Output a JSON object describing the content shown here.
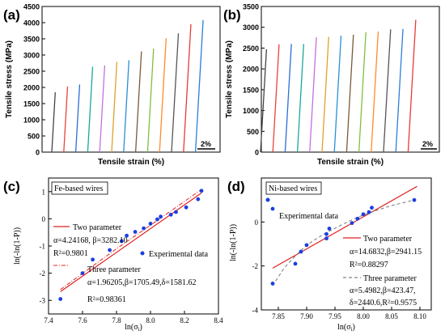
{
  "chart_data": [
    {
      "panel_label": "(a)",
      "type": "line",
      "xlabel": "Tensile strain (%)",
      "ylabel": "Tensile stress (MPa)",
      "ylim": [
        0,
        4500
      ],
      "yticks": [
        "0",
        "500",
        "1000",
        "1500",
        "2000",
        "2500",
        "3000",
        "3500",
        "4000",
        "4500"
      ],
      "scale_bar_label": "2%",
      "series": [
        {
          "peak": 1850,
          "color": "#444444"
        },
        {
          "peak": 2030,
          "color": "#e8443a"
        },
        {
          "peak": 2090,
          "color": "#2a6fd6"
        },
        {
          "peak": 2640,
          "color": "#1aa89a"
        },
        {
          "peak": 2680,
          "color": "#c86de0"
        },
        {
          "peak": 2790,
          "color": "#e0a12a"
        },
        {
          "peak": 2840,
          "color": "#2a8fd6"
        },
        {
          "peak": 3110,
          "color": "#7a5a3a"
        },
        {
          "peak": 3200,
          "color": "#7fbf3f"
        },
        {
          "peak": 3520,
          "color": "#ff8a2a"
        },
        {
          "peak": 3670,
          "color": "#555555"
        },
        {
          "peak": 3950,
          "color": "#e83a3a"
        },
        {
          "peak": 4080,
          "color": "#2a7fd6"
        }
      ]
    },
    {
      "panel_label": "(b)",
      "type": "line",
      "xlabel": "Tensile strain (%)",
      "ylabel": "Tensile stress (MPa)",
      "ylim": [
        0,
        3500
      ],
      "yticks": [
        "0",
        "500",
        "1000",
        "1500",
        "2000",
        "2500",
        "3000",
        "3500"
      ],
      "scale_bar_label": "2%",
      "series": [
        {
          "peak": 2470,
          "color": "#444444"
        },
        {
          "peak": 2590,
          "color": "#e8443a"
        },
        {
          "peak": 2600,
          "color": "#2a6fd6"
        },
        {
          "peak": 2600,
          "color": "#1aa89a"
        },
        {
          "peak": 2760,
          "color": "#c86de0"
        },
        {
          "peak": 2770,
          "color": "#e0a12a"
        },
        {
          "peak": 2800,
          "color": "#2a8fd6"
        },
        {
          "peak": 2820,
          "color": "#7a5a3a"
        },
        {
          "peak": 2880,
          "color": "#7fbf3f"
        },
        {
          "peak": 2900,
          "color": "#ff8a2a"
        },
        {
          "peak": 2950,
          "color": "#555555"
        },
        {
          "peak": 2960,
          "color": "#2a7fd6"
        },
        {
          "peak": 3180,
          "color": "#e83a3a"
        }
      ]
    },
    {
      "panel_label": "(c)",
      "type": "scatter",
      "xlabel": "ln(σ",
      "xlabel_sub": "i",
      "xlabel_tail": ")",
      "ylabel": "ln(-ln(1-P))",
      "xlim": [
        7.4,
        8.4
      ],
      "ylim": [
        -3.5,
        1.5
      ],
      "xticks": [
        "7.4",
        "7.6",
        "7.8",
        "8.0",
        "8.2",
        "8.4"
      ],
      "yticks": [
        "-3",
        "-2",
        "-1",
        "0",
        "1"
      ],
      "box_label": "Fe-based wires",
      "legend": {
        "two_param": "Two parameter",
        "two_param_vals": "α=4.24168, β=3282.10",
        "two_param_r2": "R²=0.9801",
        "experimental": "Experimental data",
        "three_param": "Three parameter",
        "three_param_vals": "α=1.96205,β=1705.49,δ=1581.62",
        "three_param_r2": "R²=0.98361"
      },
      "points": [
        [
          7.47,
          -2.95
        ],
        [
          7.6,
          -2.0
        ],
        [
          7.66,
          -1.5
        ],
        [
          7.76,
          -1.15
        ],
        [
          7.83,
          -0.82
        ],
        [
          7.86,
          -0.62
        ],
        [
          7.91,
          -0.48
        ],
        [
          7.96,
          -0.35
        ],
        [
          8.0,
          -0.18
        ],
        [
          8.04,
          -0.02
        ],
        [
          8.06,
          0.08
        ],
        [
          8.12,
          0.15
        ],
        [
          8.15,
          0.25
        ],
        [
          8.21,
          0.42
        ],
        [
          8.28,
          0.72
        ],
        [
          8.3,
          1.03
        ]
      ],
      "fit_two": [
        [
          7.47,
          -2.68
        ],
        [
          8.3,
          0.95
        ]
      ],
      "fit_three": [
        [
          7.47,
          -2.6
        ],
        [
          7.8,
          -1.1
        ],
        [
          8.1,
          0.2
        ],
        [
          8.3,
          1.08
        ]
      ]
    },
    {
      "panel_label": "(d)",
      "type": "scatter",
      "xlabel": "ln(σ",
      "xlabel_sub": "i",
      "xlabel_tail": ")",
      "ylabel": "ln(-ln(1-P))",
      "xlim": [
        7.82,
        8.12
      ],
      "ylim": [
        -4,
        2
      ],
      "xticks": [
        "7.85",
        "7.90",
        "7.95",
        "8.00",
        "8.05",
        "8.10"
      ],
      "yticks": [
        "-4",
        "-2",
        "0"
      ],
      "box_label": "Ni-based wires",
      "legend": {
        "experimental": "Experimental data",
        "two_param": "Two parameter",
        "two_param_vals": "α=14.6832,β=2941.15",
        "two_param_r2": "R²=0.88297",
        "three_param": "Three parameter",
        "three_param_vals": "α=5.4982,β=423.47,",
        "three_param_vals2": "δ=2440.6,R²=0.9575"
      },
      "points": [
        [
          7.84,
          -2.8
        ],
        [
          7.84,
          0.6
        ],
        [
          7.88,
          -1.9
        ],
        [
          7.89,
          -1.35
        ],
        [
          7.9,
          -1.05
        ],
        [
          7.935,
          -0.75
        ],
        [
          7.935,
          -0.55
        ],
        [
          7.94,
          -0.3
        ],
        [
          7.98,
          -0.05
        ],
        [
          7.99,
          0.15
        ],
        [
          8.0,
          0.35
        ],
        [
          8.01,
          0.45
        ],
        [
          8.015,
          0.65
        ],
        [
          8.09,
          1.0
        ]
      ],
      "fit_two": [
        [
          7.84,
          -2.1
        ],
        [
          8.095,
          1.62
        ]
      ],
      "fit_three": [
        [
          7.84,
          -2.9
        ],
        [
          7.86,
          -2.1
        ],
        [
          7.88,
          -1.55
        ],
        [
          7.9,
          -1.05
        ],
        [
          7.93,
          -0.55
        ],
        [
          7.96,
          -0.15
        ],
        [
          7.99,
          0.22
        ],
        [
          8.02,
          0.5
        ],
        [
          8.05,
          0.75
        ],
        [
          8.09,
          1.0
        ]
      ]
    }
  ]
}
